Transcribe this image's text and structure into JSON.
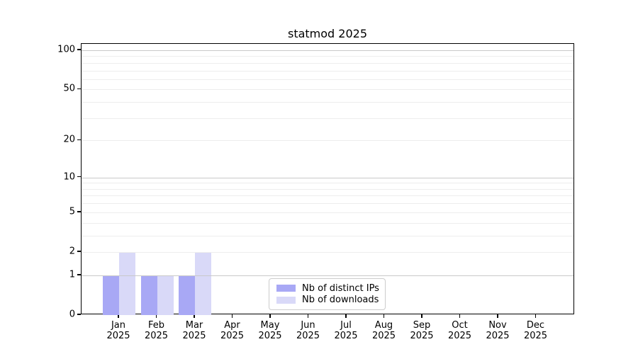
{
  "chart_data": {
    "type": "bar",
    "title": "statmod 2025",
    "y_scale": "log1p",
    "ylim": [
      0,
      112
    ],
    "grid": true,
    "legend_position": "inside-bottom-center",
    "categories": [
      {
        "month": "Jan",
        "year": "2025"
      },
      {
        "month": "Feb",
        "year": "2025"
      },
      {
        "month": "Mar",
        "year": "2025"
      },
      {
        "month": "Apr",
        "year": "2025"
      },
      {
        "month": "May",
        "year": "2025"
      },
      {
        "month": "Jun",
        "year": "2025"
      },
      {
        "month": "Jul",
        "year": "2025"
      },
      {
        "month": "Aug",
        "year": "2025"
      },
      {
        "month": "Sep",
        "year": "2025"
      },
      {
        "month": "Oct",
        "year": "2025"
      },
      {
        "month": "Nov",
        "year": "2025"
      },
      {
        "month": "Dec",
        "year": "2025"
      }
    ],
    "series": [
      {
        "name": "Nb of distinct IPs",
        "key": "distinct-ips",
        "color": "#a8a8f5",
        "values": [
          1,
          1,
          1,
          0,
          0,
          0,
          0,
          0,
          0,
          0,
          0,
          0
        ]
      },
      {
        "name": "Nb of downloads",
        "key": "downloads",
        "color": "#d9d9f8",
        "values": [
          2,
          1,
          2,
          0,
          0,
          0,
          0,
          0,
          0,
          0,
          0,
          0
        ]
      }
    ],
    "y_ticks": [
      0,
      1,
      2,
      5,
      10,
      20,
      50,
      100
    ],
    "y_major_gridlines": [
      1,
      10,
      100
    ],
    "y_minor_gridlines": [
      2,
      3,
      4,
      5,
      6,
      7,
      8,
      9,
      20,
      30,
      40,
      50,
      60,
      70,
      80,
      90
    ]
  },
  "colors": {
    "major_grid": "#c9c9c9",
    "minor_grid": "#ededed",
    "axis": "#000000",
    "background": "#ffffff"
  }
}
